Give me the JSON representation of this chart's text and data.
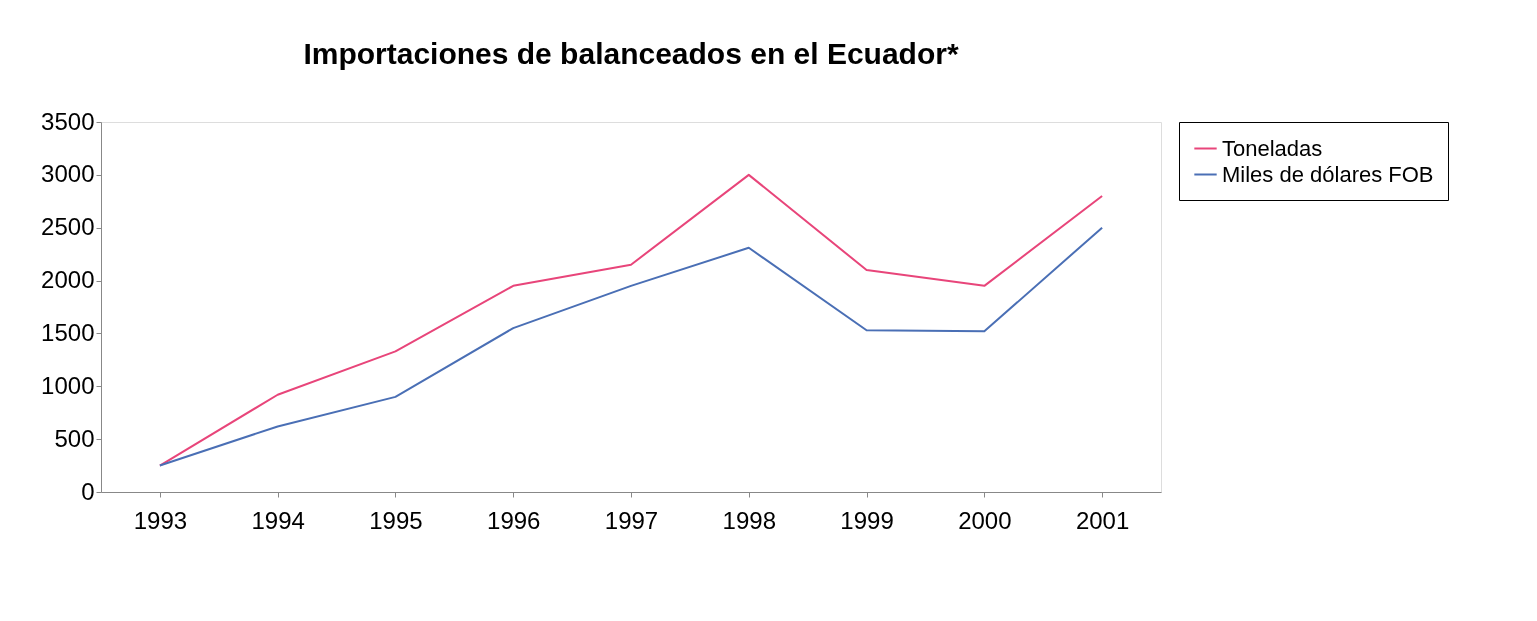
{
  "chart_data": {
    "type": "line",
    "title": "Importaciones de balanceados en el Ecuador*",
    "categories": [
      "1993",
      "1994",
      "1995",
      "1996",
      "1997",
      "1998",
      "1999",
      "2000",
      "2001"
    ],
    "series": [
      {
        "name": "Toneladas",
        "color": "#e8457a",
        "values": [
          250,
          920,
          1330,
          1950,
          2150,
          3000,
          2100,
          1950,
          2800
        ]
      },
      {
        "name": "Miles de dólares FOB",
        "color": "#4a6fb5",
        "values": [
          250,
          620,
          900,
          1550,
          1950,
          2310,
          1530,
          1520,
          2500
        ]
      }
    ],
    "ylim": [
      0,
      3500
    ],
    "yticks": [
      0,
      500,
      1000,
      1500,
      2000,
      2500,
      3000,
      3500
    ],
    "grid": false,
    "legend": "right",
    "marker": "none",
    "line_style": "solid"
  }
}
